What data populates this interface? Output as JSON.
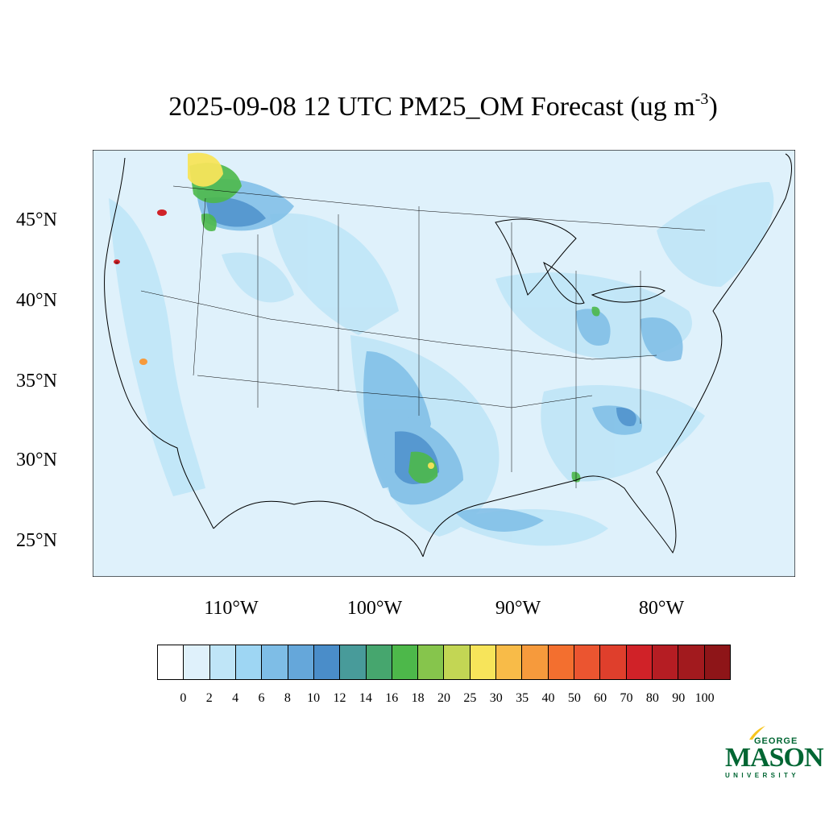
{
  "title": {
    "main": "2025-09-08 12 UTC PM25_OM Forecast (ug m",
    "sup": "-3",
    "close": ")"
  },
  "map": {
    "lat_labels": [
      "45°N",
      "40°N",
      "35°N",
      "30°N",
      "25°N"
    ],
    "lon_labels": [
      "110°W",
      "100°W",
      "90°W",
      "80°W"
    ],
    "background_color": "#dff1fb"
  },
  "colorbar": {
    "labels": [
      "0",
      "2",
      "4",
      "6",
      "8",
      "10",
      "12",
      "14",
      "16",
      "18",
      "20",
      "25",
      "30",
      "35",
      "40",
      "50",
      "60",
      "70",
      "80",
      "90",
      "100"
    ],
    "colors": [
      "#ffffff",
      "#dff1fb",
      "#bfe5f7",
      "#9ed6f3",
      "#7ebde6",
      "#65a7da",
      "#4a8dc9",
      "#489b9a",
      "#46a66e",
      "#4db84a",
      "#86c54c",
      "#c3d654",
      "#f7e45a",
      "#f8bb48",
      "#f69a3c",
      "#f36f2f",
      "#eb5530",
      "#df3f2c",
      "#d02228",
      "#b51d23",
      "#a21a1e",
      "#8e1518"
    ]
  },
  "logo": {
    "line1": "GEORGE",
    "line2": "MASON",
    "line3": "UNIVERSITY",
    "color": "#006633"
  }
}
